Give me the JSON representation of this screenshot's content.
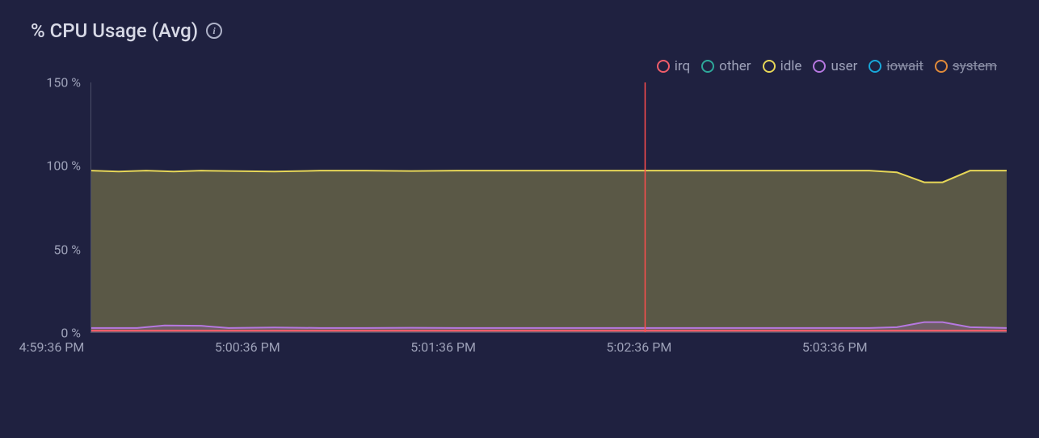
{
  "title": "% CPU Usage (Avg)",
  "info_icon_glyph": "i",
  "background_color": "#1f2140",
  "text_color": "#c2c5d6",
  "axis_text_color": "#9da1b8",
  "grid_color": "#4a4d68",
  "chart": {
    "type": "area",
    "ylim": [
      0,
      150
    ],
    "yticks": [
      0,
      50,
      100,
      150
    ],
    "ytick_labels": [
      "0 %",
      "50 %",
      "100 %",
      "150 %"
    ],
    "xtick_labels": [
      "4:59:36 PM",
      "5:00:36 PM",
      "5:01:36 PM",
      "5:02:36 PM",
      "5:03:36 PM"
    ],
    "xtick_positions_pct": [
      0,
      20.5,
      41,
      61.5,
      82
    ],
    "cursor_position_pct": 60.5,
    "cursor_color": "#ff4d4d",
    "legend": [
      {
        "name": "irq",
        "label": "irq",
        "color": "#ef5d6a",
        "enabled": true
      },
      {
        "name": "other",
        "label": "other",
        "color": "#2ea89a",
        "enabled": true
      },
      {
        "name": "idle",
        "label": "idle",
        "color": "#e6d657",
        "enabled": true
      },
      {
        "name": "user",
        "label": "user",
        "color": "#b678e0",
        "enabled": true
      },
      {
        "name": "iowait",
        "label": "iowait",
        "color": "#18a7d9",
        "enabled": false
      },
      {
        "name": "system",
        "label": "system",
        "color": "#e08a3a",
        "enabled": false
      }
    ],
    "series": {
      "irq": {
        "color": "#ef5d6a",
        "fill_opacity": 0.25,
        "x_pct": [
          0,
          5,
          10,
          15,
          20,
          25,
          30,
          35,
          40,
          45,
          50,
          55,
          60,
          65,
          70,
          75,
          80,
          85,
          90,
          95,
          100
        ],
        "y_val": [
          1.0,
          1.0,
          1.0,
          1.0,
          1.0,
          1.0,
          1.0,
          1.0,
          1.0,
          1.0,
          1.0,
          1.0,
          1.0,
          1.0,
          1.0,
          1.0,
          1.0,
          1.0,
          1.0,
          1.0,
          1.0
        ]
      },
      "user": {
        "color": "#b678e0",
        "fill_opacity": 0.22,
        "x_pct": [
          0,
          5,
          8,
          12,
          15,
          20,
          25,
          30,
          35,
          40,
          45,
          50,
          55,
          60,
          65,
          70,
          75,
          80,
          85,
          88,
          91,
          93,
          96,
          100
        ],
        "y_val": [
          2.5,
          2.5,
          4.0,
          3.8,
          2.5,
          2.8,
          2.5,
          2.5,
          2.6,
          2.5,
          2.5,
          2.5,
          2.5,
          2.5,
          2.5,
          2.5,
          2.5,
          2.5,
          2.5,
          3.0,
          6.0,
          6.0,
          3.0,
          2.5
        ]
      },
      "idle": {
        "color": "#e6d657",
        "fill_opacity": 0.3,
        "x_pct": [
          0,
          3,
          6,
          9,
          12,
          15,
          20,
          25,
          30,
          35,
          40,
          45,
          50,
          55,
          60,
          65,
          70,
          75,
          80,
          85,
          88,
          91,
          93,
          96,
          100
        ],
        "y_val": [
          97,
          96.5,
          97,
          96.5,
          97,
          96.8,
          96.5,
          97,
          97,
          96.8,
          97,
          97,
          97,
          97,
          97,
          97,
          97,
          97,
          97,
          97,
          96,
          90,
          90,
          97,
          97
        ]
      }
    }
  }
}
